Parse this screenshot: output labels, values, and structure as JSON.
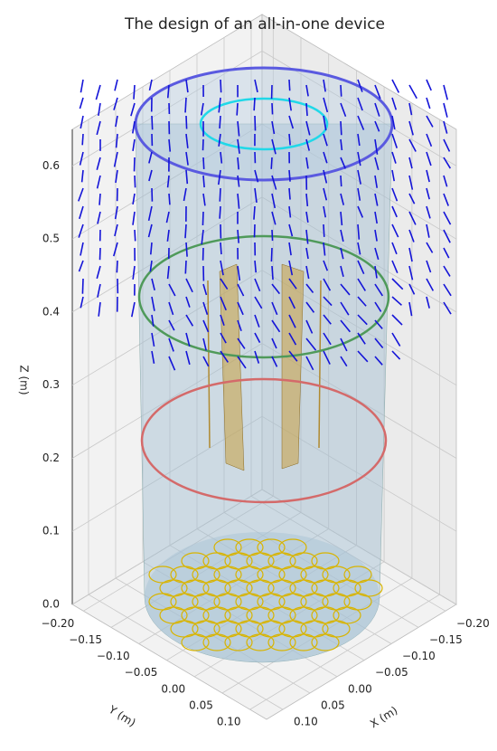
{
  "chart_data": {
    "type": "3d",
    "title": "The design of an all-in-one device",
    "xlabel": "X (m)",
    "ylabel": "Y (m)",
    "zlabel": "Z (m)",
    "xlim": [
      -0.22,
      0.13
    ],
    "ylim": [
      -0.22,
      0.13
    ],
    "zlim": [
      0,
      0.65
    ],
    "xticks": [
      {
        "value": -0.2,
        "label": "−0.20"
      },
      {
        "value": -0.15,
        "label": "−0.15"
      },
      {
        "value": -0.1,
        "label": "−0.10"
      },
      {
        "value": -0.05,
        "label": "−0.05"
      },
      {
        "value": 0,
        "label": "0.00"
      },
      {
        "value": 0.05,
        "label": "0.05"
      },
      {
        "value": 0.1,
        "label": "0.10"
      }
    ],
    "yticks": [
      {
        "value": -0.2,
        "label": "−0.20"
      },
      {
        "value": -0.15,
        "label": "−0.15"
      },
      {
        "value": -0.1,
        "label": "−0.10"
      },
      {
        "value": -0.05,
        "label": "−0.05"
      },
      {
        "value": 0,
        "label": "0.00"
      },
      {
        "value": 0.05,
        "label": "0.05"
      },
      {
        "value": 0.1,
        "label": "0.10"
      }
    ],
    "zticks": [
      {
        "value": 0,
        "label": "0.0"
      },
      0.1,
      0.2,
      0.3,
      0.4,
      0.5,
      0.6
    ],
    "grid": true
  }
}
